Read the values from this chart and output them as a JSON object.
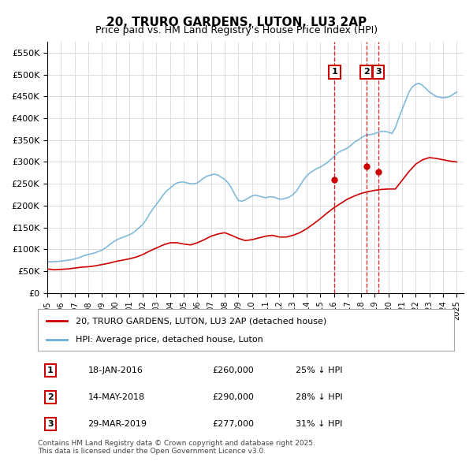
{
  "title": "20, TRURO GARDENS, LUTON, LU3 2AP",
  "subtitle": "Price paid vs. HM Land Registry's House Price Index (HPI)",
  "ylabel": "",
  "xlabel": "",
  "ylim": [
    0,
    575000
  ],
  "yticks": [
    0,
    50000,
    100000,
    150000,
    200000,
    250000,
    300000,
    350000,
    400000,
    450000,
    500000,
    550000
  ],
  "ytick_labels": [
    "£0",
    "£50K",
    "£100K",
    "£150K",
    "£200K",
    "£250K",
    "£300K",
    "£350K",
    "£400K",
    "£450K",
    "£500K",
    "£550K"
  ],
  "xlim_start": 1995.0,
  "xlim_end": 2025.5,
  "hpi_color": "#6baed6",
  "price_color": "#cc0000",
  "dashed_line_color": "#cc0000",
  "transaction_dates": [
    2016.05,
    2018.37,
    2019.25
  ],
  "transaction_prices": [
    260000,
    290000,
    277000
  ],
  "transaction_labels": [
    "1",
    "2",
    "3"
  ],
  "transaction_info": [
    {
      "label": "1",
      "date": "18-JAN-2016",
      "price": "£260,000",
      "hpi": "25% ↓ HPI"
    },
    {
      "label": "2",
      "date": "14-MAY-2018",
      "price": "£290,000",
      "hpi": "28% ↓ HPI"
    },
    {
      "label": "3",
      "date": "29-MAR-2019",
      "price": "£277,000",
      "hpi": "31% ↓ HPI"
    }
  ],
  "legend_entries": [
    {
      "label": "20, TRURO GARDENS, LUTON, LU3 2AP (detached house)",
      "color": "#cc0000"
    },
    {
      "label": "HPI: Average price, detached house, Luton",
      "color": "#6baed6"
    }
  ],
  "footnote": "Contains HM Land Registry data © Crown copyright and database right 2025.\nThis data is licensed under the Open Government Licence v3.0.",
  "background_color": "#ffffff",
  "grid_color": "#dddddd",
  "hpi_data_x": [
    1995.0,
    1995.25,
    1995.5,
    1995.75,
    1996.0,
    1996.25,
    1996.5,
    1996.75,
    1997.0,
    1997.25,
    1997.5,
    1997.75,
    1998.0,
    1998.25,
    1998.5,
    1998.75,
    1999.0,
    1999.25,
    1999.5,
    1999.75,
    2000.0,
    2000.25,
    2000.5,
    2000.75,
    2001.0,
    2001.25,
    2001.5,
    2001.75,
    2002.0,
    2002.25,
    2002.5,
    2002.75,
    2003.0,
    2003.25,
    2003.5,
    2003.75,
    2004.0,
    2004.25,
    2004.5,
    2004.75,
    2005.0,
    2005.25,
    2005.5,
    2005.75,
    2006.0,
    2006.25,
    2006.5,
    2006.75,
    2007.0,
    2007.25,
    2007.5,
    2007.75,
    2008.0,
    2008.25,
    2008.5,
    2008.75,
    2009.0,
    2009.25,
    2009.5,
    2009.75,
    2010.0,
    2010.25,
    2010.5,
    2010.75,
    2011.0,
    2011.25,
    2011.5,
    2011.75,
    2012.0,
    2012.25,
    2012.5,
    2012.75,
    2013.0,
    2013.25,
    2013.5,
    2013.75,
    2014.0,
    2014.25,
    2014.5,
    2014.75,
    2015.0,
    2015.25,
    2015.5,
    2015.75,
    2016.0,
    2016.25,
    2016.5,
    2016.75,
    2017.0,
    2017.25,
    2017.5,
    2017.75,
    2018.0,
    2018.25,
    2018.5,
    2018.75,
    2019.0,
    2019.25,
    2019.5,
    2019.75,
    2020.0,
    2020.25,
    2020.5,
    2020.75,
    2021.0,
    2021.25,
    2021.5,
    2021.75,
    2022.0,
    2022.25,
    2022.5,
    2022.75,
    2023.0,
    2023.25,
    2023.5,
    2023.75,
    2024.0,
    2024.25,
    2024.5,
    2024.75,
    2025.0
  ],
  "hpi_data_y": [
    72000,
    71000,
    72000,
    72000,
    73000,
    74000,
    75000,
    76000,
    78000,
    80000,
    83000,
    86000,
    88000,
    90000,
    92000,
    95000,
    98000,
    103000,
    109000,
    115000,
    120000,
    124000,
    127000,
    130000,
    133000,
    137000,
    143000,
    150000,
    157000,
    168000,
    181000,
    193000,
    203000,
    214000,
    225000,
    234000,
    240000,
    247000,
    252000,
    254000,
    254000,
    252000,
    250000,
    250000,
    252000,
    258000,
    264000,
    268000,
    270000,
    272000,
    270000,
    265000,
    260000,
    252000,
    240000,
    225000,
    212000,
    210000,
    213000,
    218000,
    222000,
    224000,
    222000,
    220000,
    218000,
    220000,
    220000,
    218000,
    215000,
    215000,
    217000,
    220000,
    225000,
    233000,
    245000,
    258000,
    268000,
    275000,
    280000,
    285000,
    288000,
    293000,
    298000,
    305000,
    312000,
    320000,
    325000,
    328000,
    332000,
    338000,
    345000,
    350000,
    355000,
    360000,
    362000,
    363000,
    365000,
    368000,
    370000,
    370000,
    368000,
    365000,
    378000,
    400000,
    420000,
    440000,
    460000,
    472000,
    478000,
    480000,
    475000,
    468000,
    460000,
    455000,
    450000,
    448000,
    447000,
    448000,
    450000,
    455000,
    460000
  ],
  "price_data_x": [
    1995.0,
    1995.5,
    1996.0,
    1996.5,
    1997.0,
    1997.5,
    1998.0,
    1998.5,
    1999.0,
    1999.5,
    2000.0,
    2000.5,
    2001.0,
    2001.5,
    2002.0,
    2002.5,
    2003.0,
    2003.5,
    2004.0,
    2004.5,
    2005.0,
    2005.5,
    2006.0,
    2006.5,
    2007.0,
    2007.5,
    2008.0,
    2008.5,
    2009.0,
    2009.5,
    2010.0,
    2010.5,
    2011.0,
    2011.5,
    2012.0,
    2012.5,
    2013.0,
    2013.5,
    2014.0,
    2014.5,
    2015.0,
    2015.5,
    2016.0,
    2016.5,
    2017.0,
    2017.5,
    2018.0,
    2018.5,
    2019.0,
    2019.5,
    2020.0,
    2020.5,
    2021.0,
    2021.5,
    2022.0,
    2022.5,
    2023.0,
    2023.5,
    2024.0,
    2024.5,
    2025.0
  ],
  "price_data_y": [
    55000,
    53000,
    54000,
    55000,
    57000,
    59000,
    60000,
    62000,
    65000,
    68000,
    72000,
    75000,
    78000,
    82000,
    88000,
    96000,
    103000,
    110000,
    115000,
    115000,
    112000,
    110000,
    115000,
    122000,
    130000,
    135000,
    138000,
    132000,
    125000,
    120000,
    122000,
    126000,
    130000,
    132000,
    128000,
    128000,
    132000,
    138000,
    147000,
    158000,
    170000,
    183000,
    195000,
    205000,
    215000,
    222000,
    228000,
    232000,
    235000,
    237000,
    238000,
    238000,
    258000,
    278000,
    295000,
    305000,
    310000,
    308000,
    305000,
    302000,
    300000
  ]
}
